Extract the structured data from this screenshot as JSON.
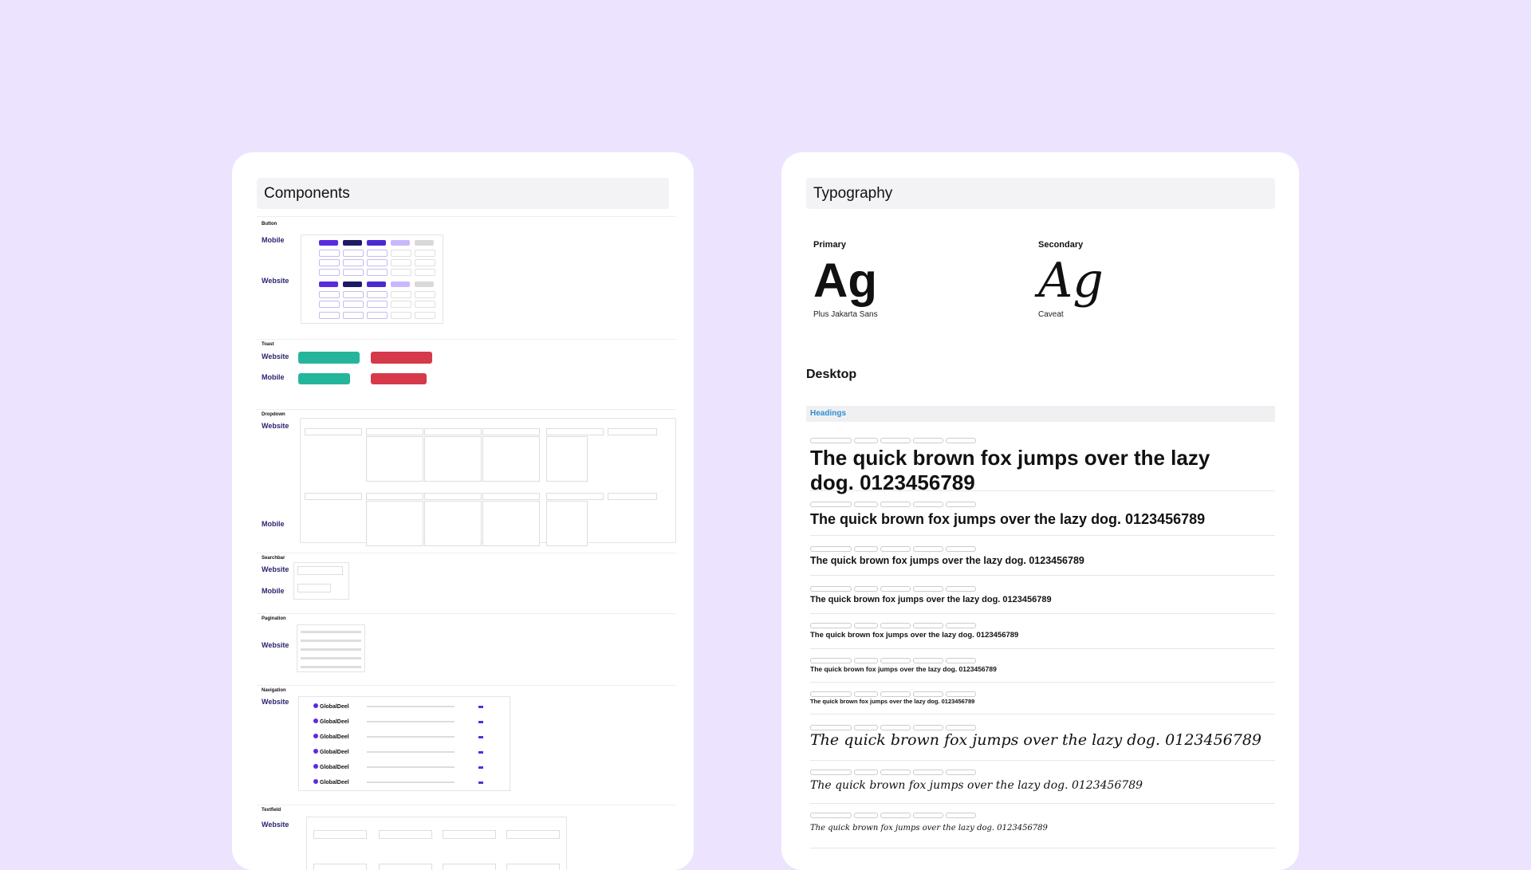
{
  "components": {
    "title": "Components",
    "sections": [
      {
        "name": "Button",
        "platforms": [
          "Mobile",
          "Website"
        ]
      },
      {
        "name": "Toast",
        "platforms": [
          "Website",
          "Mobile"
        ]
      },
      {
        "name": "Dropdown",
        "platforms": [
          "Website",
          "Mobile"
        ]
      },
      {
        "name": "Searchbar",
        "platforms": [
          "Website",
          "Mobile"
        ]
      },
      {
        "name": "Pagination",
        "platforms": [
          "Website"
        ]
      },
      {
        "name": "Navigation",
        "platforms": [
          "Website"
        ]
      },
      {
        "name": "Textfield",
        "platforms": [
          "Website"
        ]
      }
    ],
    "brand": "GlobalDeel"
  },
  "typography": {
    "title": "Typography",
    "primary": {
      "label": "Primary",
      "sample": "Ag",
      "font": "Plus Jakarta Sans"
    },
    "secondary": {
      "label": "Secondary",
      "sample": "Ag",
      "font": "Caveat"
    },
    "desktop_label": "Desktop",
    "headings_label": "Headings",
    "samples": [
      {
        "text": "The quick brown fox jumps over the lazy dog. 0123456789",
        "style": "primary"
      },
      {
        "text": "The quick brown fox jumps over the lazy dog. 0123456789",
        "style": "primary"
      },
      {
        "text": "The quick brown fox jumps over the lazy dog. 0123456789",
        "style": "primary"
      },
      {
        "text": "The quick brown fox jumps over the lazy dog. 0123456789",
        "style": "primary"
      },
      {
        "text": "The quick brown fox jumps over the lazy dog. 0123456789",
        "style": "primary"
      },
      {
        "text": "The quick brown fox jumps over the lazy dog. 0123456789",
        "style": "primary"
      },
      {
        "text": "The quick brown fox jumps over the lazy dog. 0123456789",
        "style": "primary"
      },
      {
        "text": "The quick brown fox jumps over the lazy dog. 0123456789",
        "style": "secondary"
      },
      {
        "text": "The quick brown fox jumps over the lazy dog. 0123456789",
        "style": "secondary"
      },
      {
        "text": "The quick brown fox jumps over the lazy dog. 0123456789",
        "style": "secondary"
      }
    ]
  },
  "colors": {
    "background": "#ece4fe",
    "brand_purple": "#5a2be0",
    "toast_success": "#25b59b",
    "toast_error": "#d6394a",
    "navy_label": "#2a2570",
    "headings_blue": "#2e8fd6"
  }
}
